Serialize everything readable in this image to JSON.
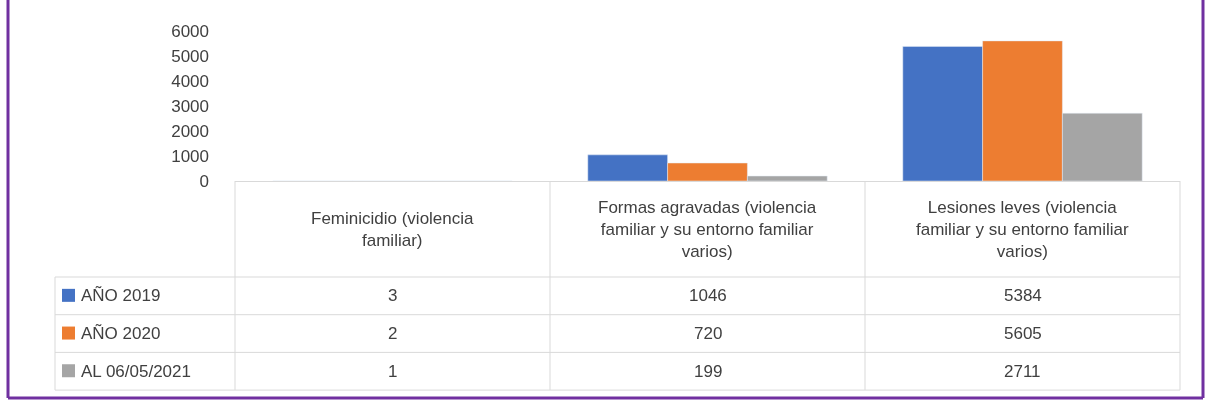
{
  "chart_data": {
    "type": "bar",
    "categories": [
      "Feminicidio (violencia familiar)",
      "Formas agravadas (violencia familiar y su entorno familiar varios)",
      "Lesiones leves (violencia familiar y su entorno familiar varios)"
    ],
    "series": [
      {
        "name": "AÑO 2019",
        "color": "#4472c4",
        "values": [
          3,
          1046,
          5384
        ]
      },
      {
        "name": "AÑO 2020",
        "color": "#ed7d31",
        "values": [
          2,
          720,
          5605
        ]
      },
      {
        "name": "AL 06/05/2021",
        "color": "#a5a5a5",
        "values": [
          1,
          199,
          2711
        ]
      }
    ],
    "ylim": [
      0,
      6000
    ],
    "yticks": [
      0,
      1000,
      2000,
      3000,
      4000,
      5000,
      6000
    ],
    "grid": false,
    "legend": "bottom",
    "data_labels": true
  }
}
